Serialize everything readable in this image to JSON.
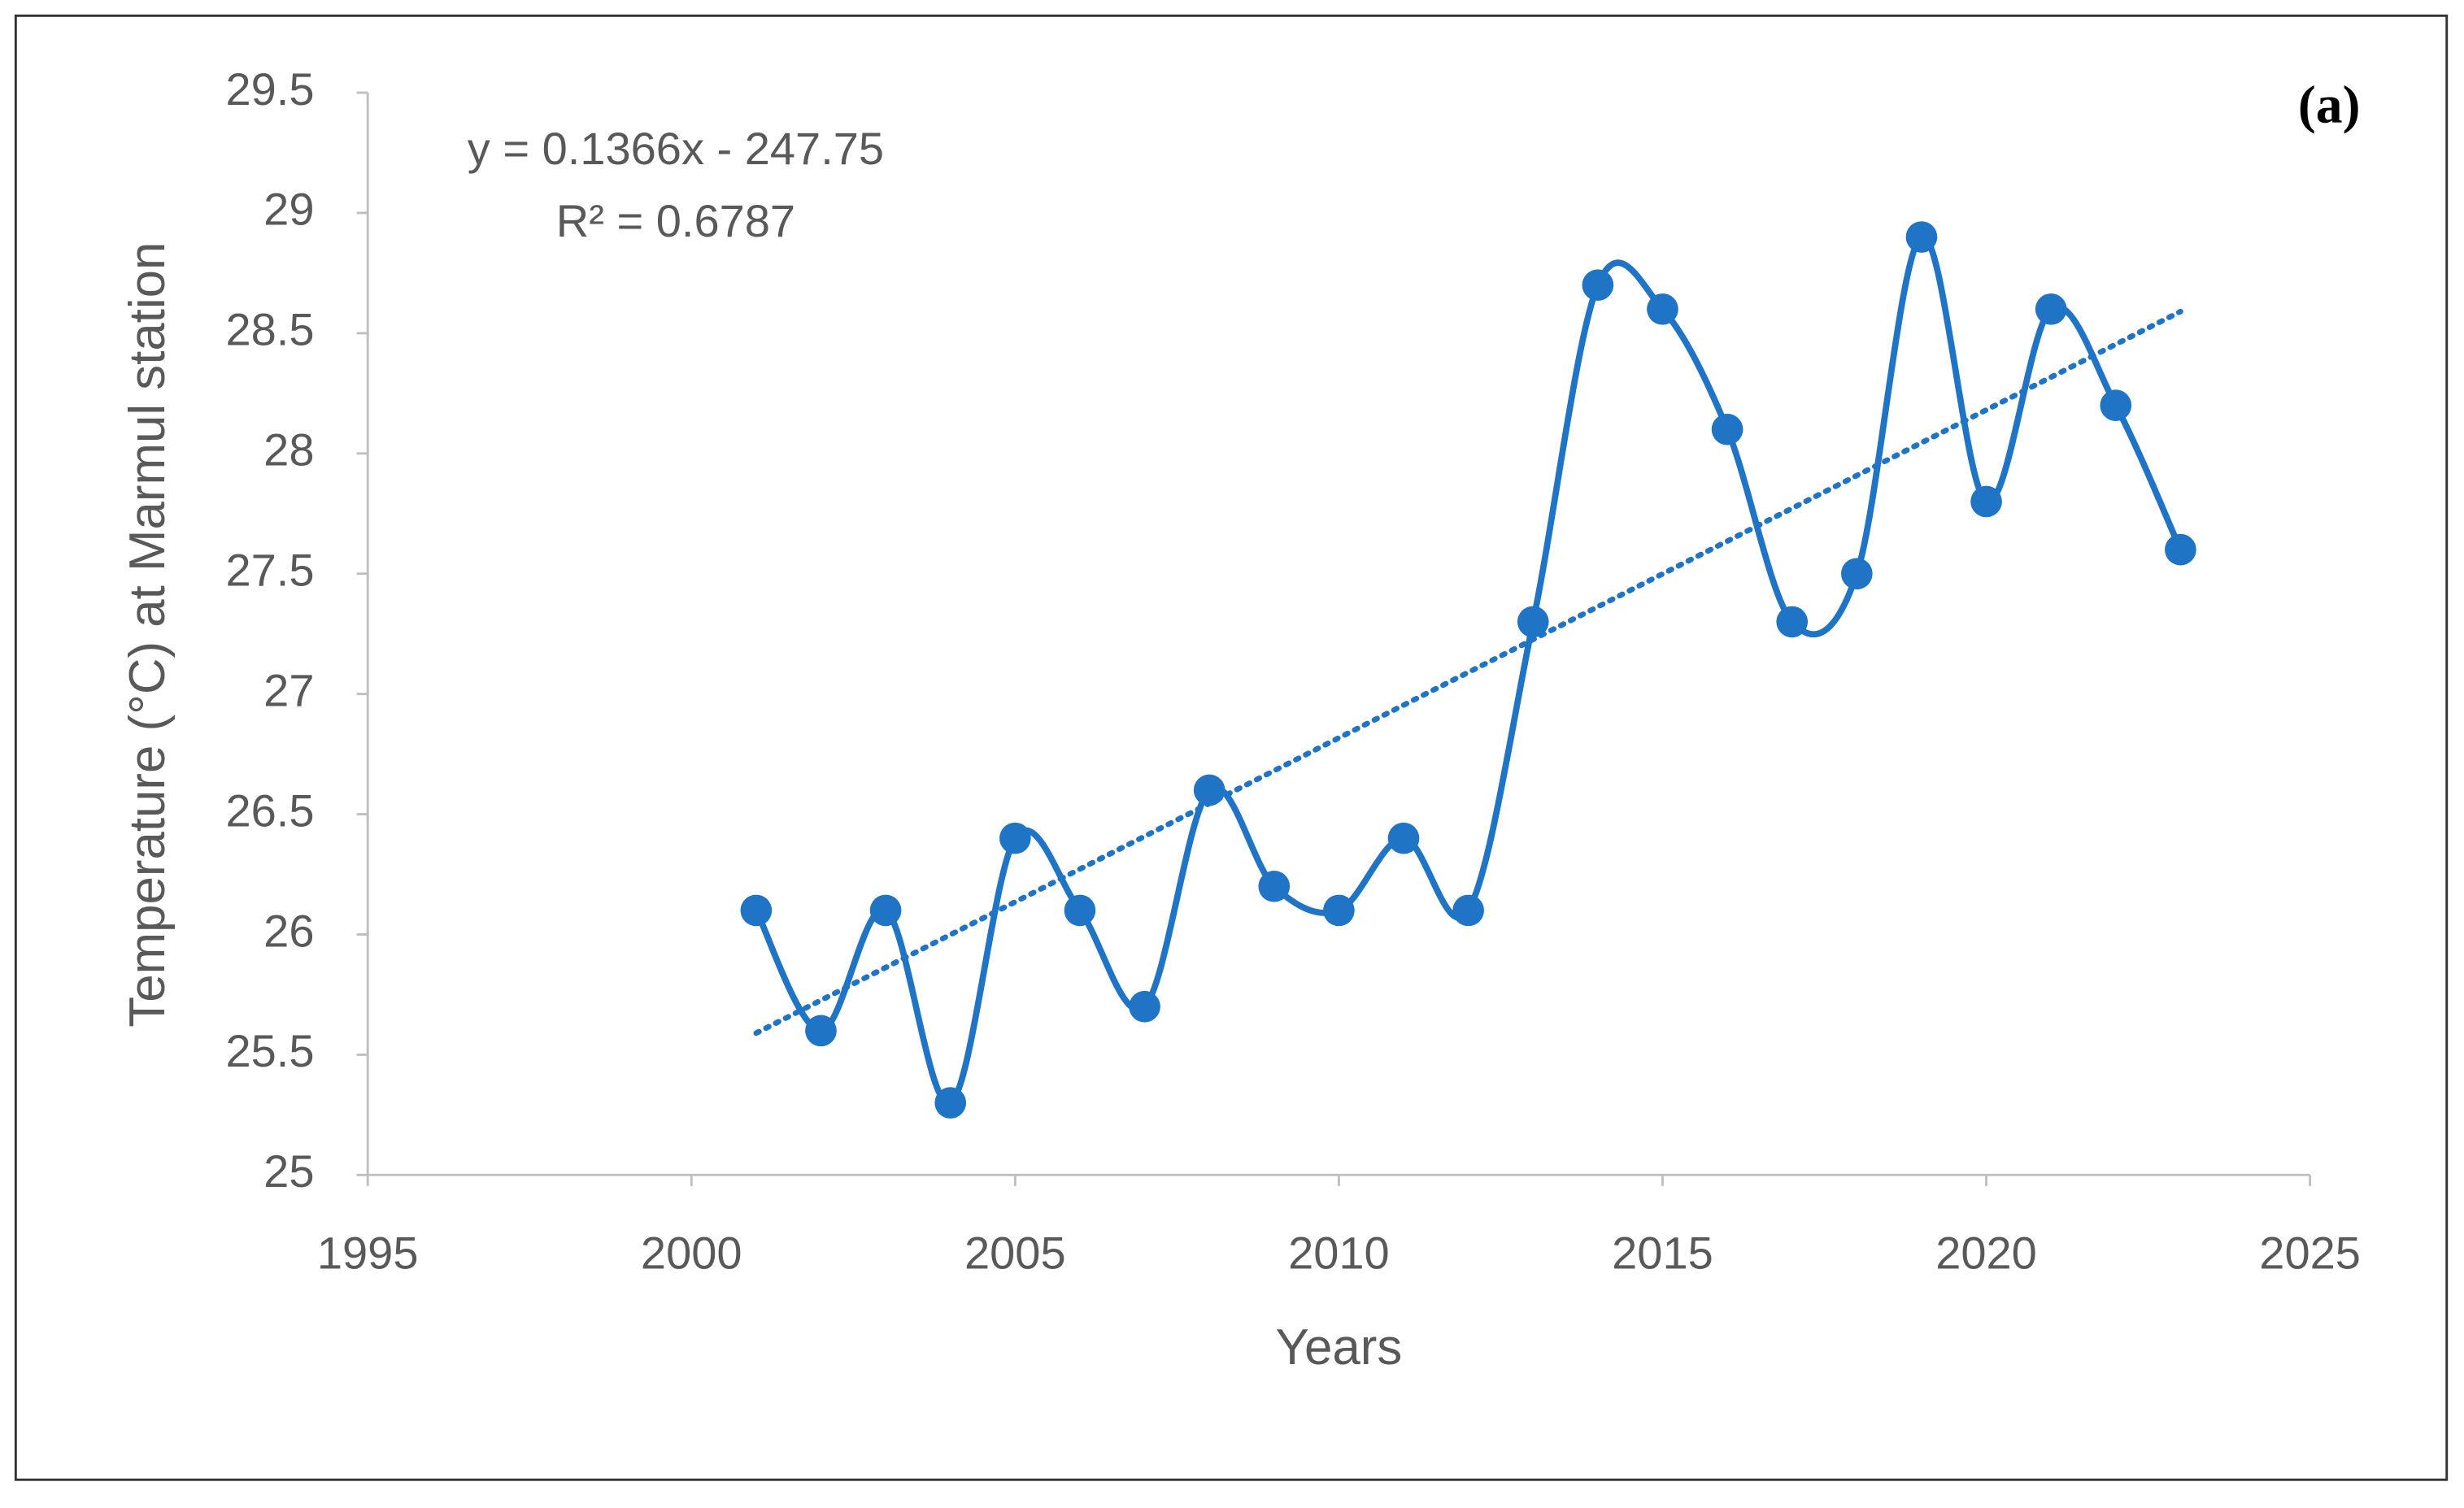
{
  "chart_data": {
    "type": "line",
    "panel_label": "(a)",
    "annotations": [
      "y = 0.1366x - 247.75",
      "R² = 0.6787"
    ],
    "x_label": "Years",
    "y_label": "Temperature (°C) at Marmul station",
    "x": [
      2001,
      2002,
      2003,
      2004,
      2005,
      2006,
      2007,
      2008,
      2009,
      2010,
      2011,
      2012,
      2013,
      2014,
      2015,
      2016,
      2017,
      2018,
      2019,
      2020,
      2021,
      2022,
      2023
    ],
    "values": [
      26.1,
      25.6,
      26.1,
      25.3,
      26.4,
      26.1,
      25.7,
      26.6,
      26.2,
      26.1,
      26.4,
      26.1,
      27.3,
      28.7,
      28.6,
      28.1,
      27.3,
      27.5,
      28.9,
      27.8,
      28.6,
      28.2,
      27.6
    ],
    "color": "#1f74c6",
    "smooth": true,
    "markers": true,
    "trendline": {
      "x": [
        2001,
        2023
      ],
      "values": [
        25.59,
        28.59
      ],
      "color": "#1f74c6",
      "style": "dotted"
    },
    "xlim": [
      1995,
      2025
    ],
    "xticks": [
      1995,
      2000,
      2005,
      2010,
      2015,
      2020,
      2025
    ],
    "ylim": [
      25,
      29.5
    ],
    "yticks": [
      25,
      25.5,
      26,
      26.5,
      27,
      27.5,
      28,
      28.5,
      29,
      29.5
    ],
    "grid": false
  }
}
